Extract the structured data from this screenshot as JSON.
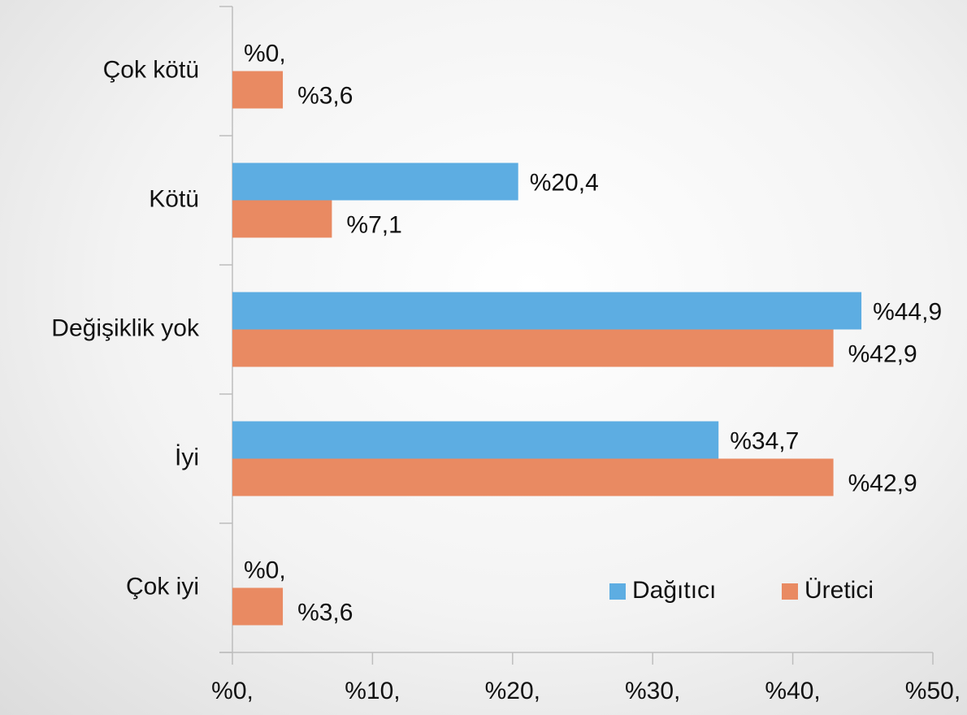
{
  "chart_data": {
    "type": "barh",
    "categories": [
      "Çok kötü",
      "Kötü",
      "Değişiklik yok",
      "İyi",
      "Çok iyi"
    ],
    "series": [
      {
        "name": "Dağıtıcı",
        "color": "#5dade2",
        "values": [
          0,
          20.4,
          44.9,
          34.7,
          0
        ],
        "value_labels": [
          "%0,",
          "%20,4",
          "%44,9",
          "%34,7",
          "%0,"
        ]
      },
      {
        "name": "Üretici",
        "color": "#e98a62",
        "values": [
          3.6,
          7.1,
          42.9,
          42.9,
          3.6
        ],
        "value_labels": [
          "%3,6",
          "%7,1",
          "%42,9",
          "%42,9",
          "%3,6"
        ]
      }
    ],
    "xlim": [
      0,
      50
    ],
    "xticks": [
      {
        "value": 0,
        "label": "%0,"
      },
      {
        "value": 10,
        "label": "%10,"
      },
      {
        "value": 20,
        "label": "%20,"
      },
      {
        "value": 30,
        "label": "%30,"
      },
      {
        "value": 40,
        "label": "%40,"
      },
      {
        "value": 50,
        "label": "%50,"
      }
    ],
    "legend": "lower right"
  }
}
